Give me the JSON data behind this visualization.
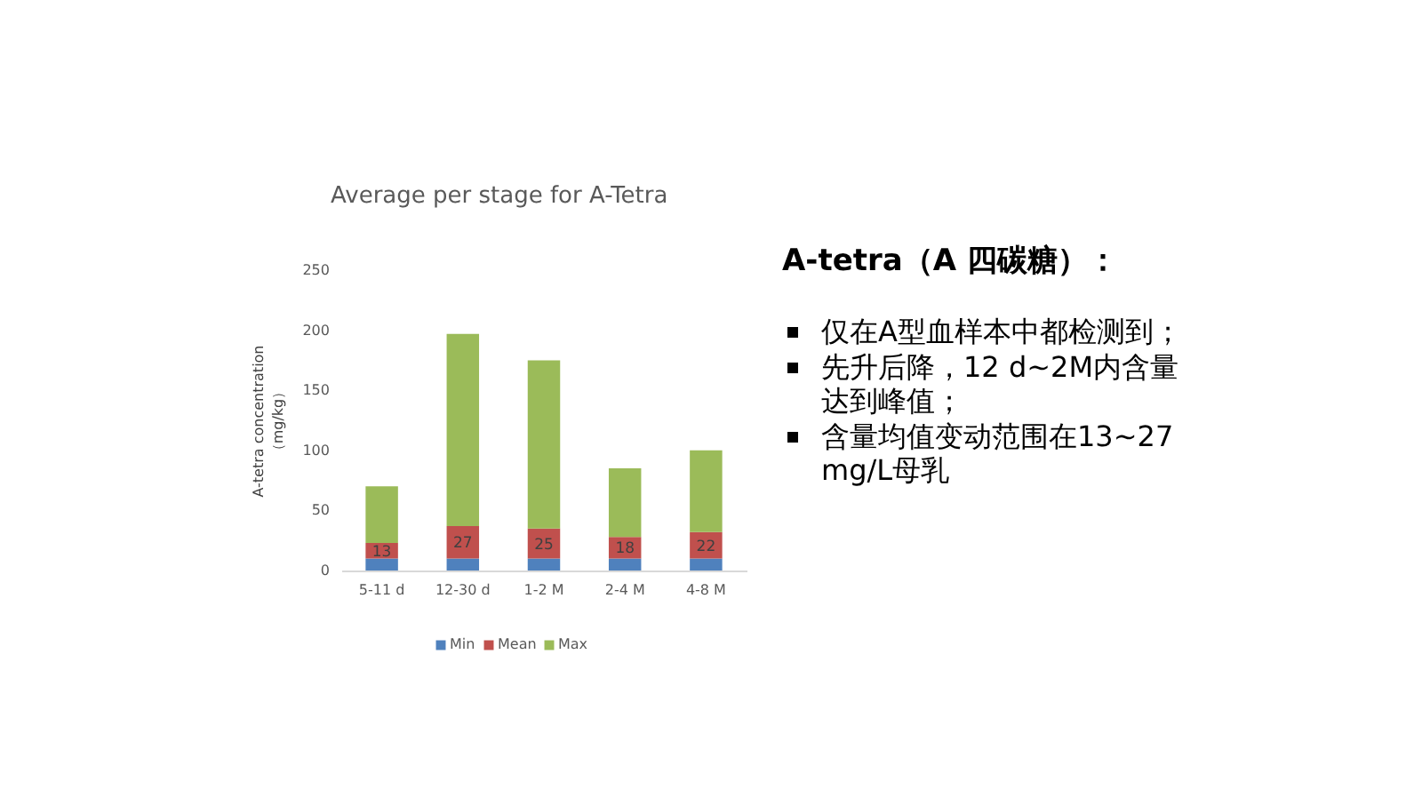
{
  "chart_data": {
    "type": "bar",
    "stacked": true,
    "title": "Average per stage for A-Tetra",
    "ylabel": "A-tetra concentration\n（mg/kg）",
    "categories": [
      "5-11 d",
      "12-30 d",
      "1-2 M",
      "2-4 M",
      "4-8 M"
    ],
    "series": [
      {
        "name": "Min",
        "color": "#4f81bd",
        "values": [
          10,
          10,
          10,
          10,
          10
        ]
      },
      {
        "name": "Mean",
        "color": "#c0504d",
        "values": [
          13,
          27,
          25,
          18,
          22
        ],
        "value_labels": [
          "13",
          "27",
          "25",
          "18",
          "22"
        ]
      },
      {
        "name": "Max",
        "color": "#9bbb59",
        "values": [
          47,
          160,
          140,
          57,
          68
        ]
      }
    ],
    "ylim": [
      0,
      250
    ],
    "yticks": [
      0,
      50,
      100,
      150,
      200,
      250
    ],
    "grid": false,
    "legend": "bottom",
    "annotations": [
      "A-tetra（A 四碳糖）：",
      "仅在A型血样本中都检测到；",
      "先升后降，12 d~2M内含量达到峰值；",
      "含量均值变动范围在13~27 mg/L母乳"
    ]
  }
}
